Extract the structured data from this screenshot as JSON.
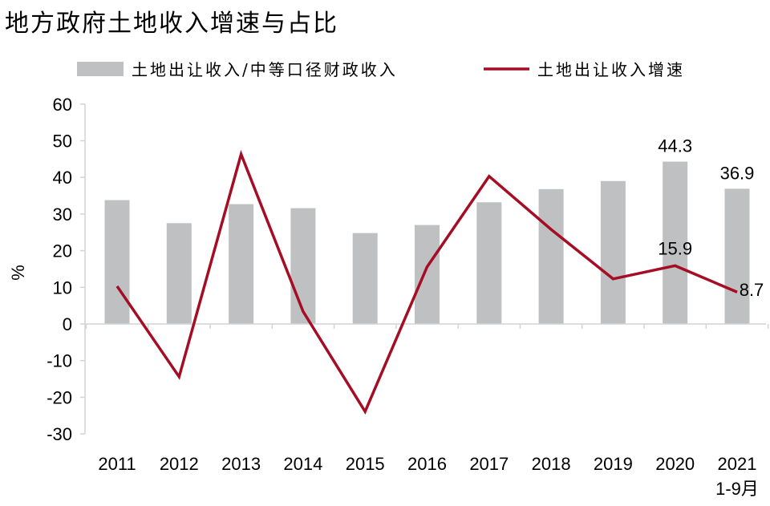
{
  "chart_data": {
    "type": "bar+line",
    "title": "地方政府土地收入增速与占比",
    "ylabel": "%",
    "ylim": [
      -30,
      60
    ],
    "yticks": [
      60,
      50,
      40,
      30,
      20,
      10,
      0,
      -10,
      -20,
      -30
    ],
    "categories": [
      "2011",
      "2012",
      "2013",
      "2014",
      "2015",
      "2016",
      "2017",
      "2018",
      "2019",
      "2020",
      "2021"
    ],
    "category_sublabels": {
      "2021": "1-9月"
    },
    "legend_position": "top",
    "series": [
      {
        "name": "土地出让收入/中等口径财政收入",
        "type": "bar",
        "color": "#bfc0c2",
        "values": [
          33.8,
          27.5,
          32.7,
          31.6,
          24.8,
          27.0,
          33.2,
          36.8,
          39.0,
          44.3,
          36.9
        ],
        "labels": {
          "9": "44.3",
          "10": "36.9"
        }
      },
      {
        "name": "土地出让收入增速",
        "type": "line",
        "color": "#a50d24",
        "values": [
          10.3,
          -14.4,
          46.3,
          3.4,
          -23.9,
          15.6,
          40.3,
          25.8,
          12.3,
          15.9,
          8.7
        ],
        "labels": {
          "9": "15.9",
          "10": "8.7"
        }
      }
    ]
  }
}
